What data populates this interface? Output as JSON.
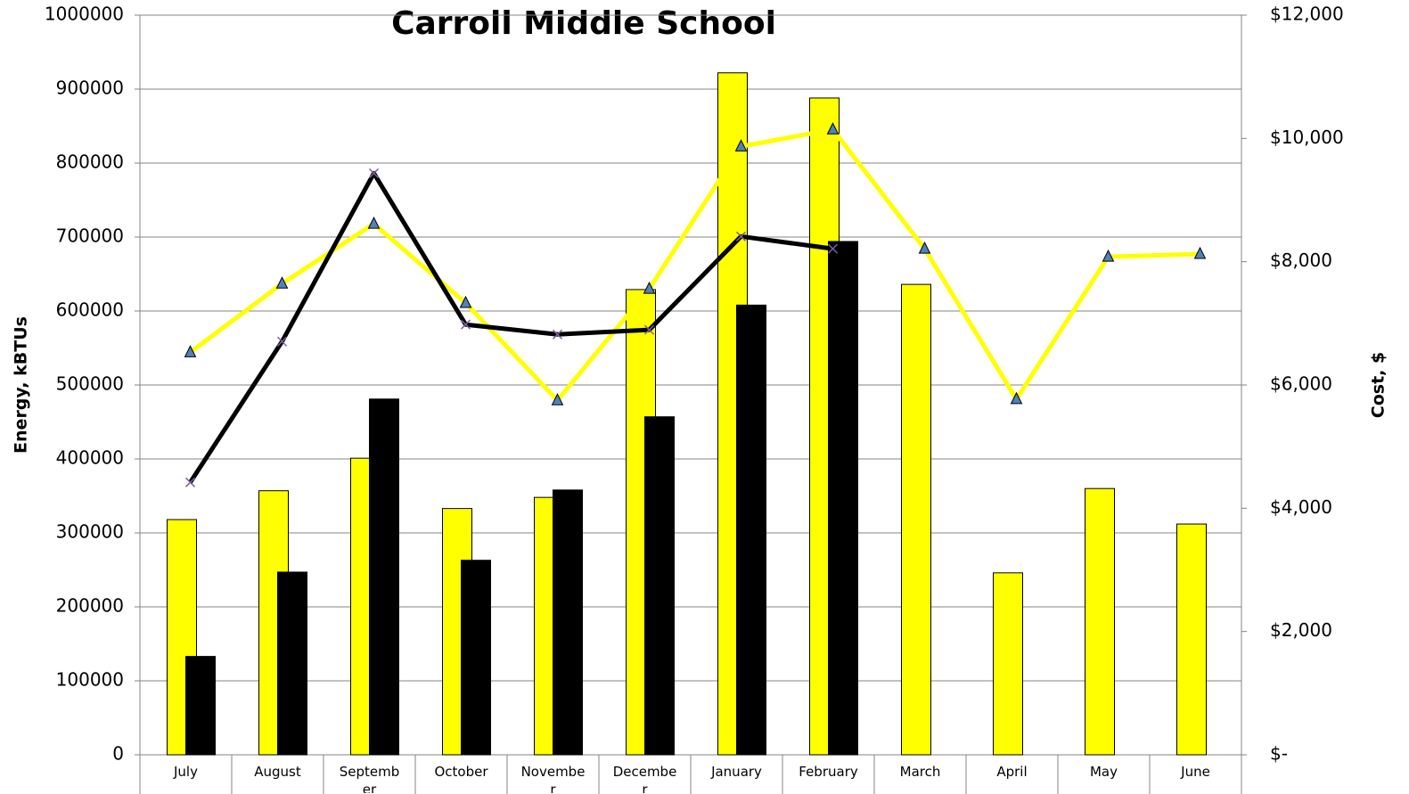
{
  "chart_data": {
    "type": "bar",
    "title": "Carroll Middle School",
    "y_label": "Energy, kBTUs",
    "y2_label": "Cost, $",
    "categories": [
      "July",
      "August",
      "September",
      "October",
      "November",
      "December",
      "January",
      "February",
      "March",
      "April",
      "May",
      "June"
    ],
    "series": [
      {
        "type": "bar",
        "color": "#ffff00",
        "values": [
          318000,
          357000,
          401000,
          333000,
          348000,
          629000,
          922000,
          888000,
          636000,
          246000,
          360000,
          312000
        ]
      },
      {
        "type": "bar",
        "color": "#000000",
        "values": [
          133000,
          247000,
          481000,
          263000,
          358000,
          457000,
          608000,
          694000,
          null,
          null,
          null,
          null
        ]
      },
      {
        "type": "line",
        "axis": "y2",
        "color": "#ffff00",
        "marker": "triangle",
        "marker_color": "#4f81bd",
        "values": [
          6530,
          7645,
          8615,
          7330,
          5750,
          7560,
          9870,
          10145,
          8210,
          5770,
          8080,
          8125
        ]
      },
      {
        "type": "line",
        "axis": "y2",
        "color": "#000000",
        "marker": "x",
        "marker_color": "#7f60a0",
        "values": [
          4420,
          6705,
          9435,
          6980,
          6820,
          6895,
          8410,
          8210,
          null,
          null,
          null,
          null
        ]
      }
    ],
    "ylim": [
      0,
      1000000
    ],
    "yticks": [
      0,
      100000,
      200000,
      300000,
      400000,
      500000,
      600000,
      700000,
      800000,
      900000,
      1000000
    ],
    "y2lim": [
      0,
      12000
    ],
    "y2ticks": [
      {
        "value": 0,
        "label": "$-"
      },
      {
        "value": 2000,
        "label": "$2,000"
      },
      {
        "value": 4000,
        "label": "$4,000"
      },
      {
        "value": 6000,
        "label": "$6,000"
      },
      {
        "value": 8000,
        "label": "$8,000"
      },
      {
        "value": 10000,
        "label": "$10,000"
      },
      {
        "value": 12000,
        "label": "$12,000"
      }
    ],
    "grid": true
  }
}
